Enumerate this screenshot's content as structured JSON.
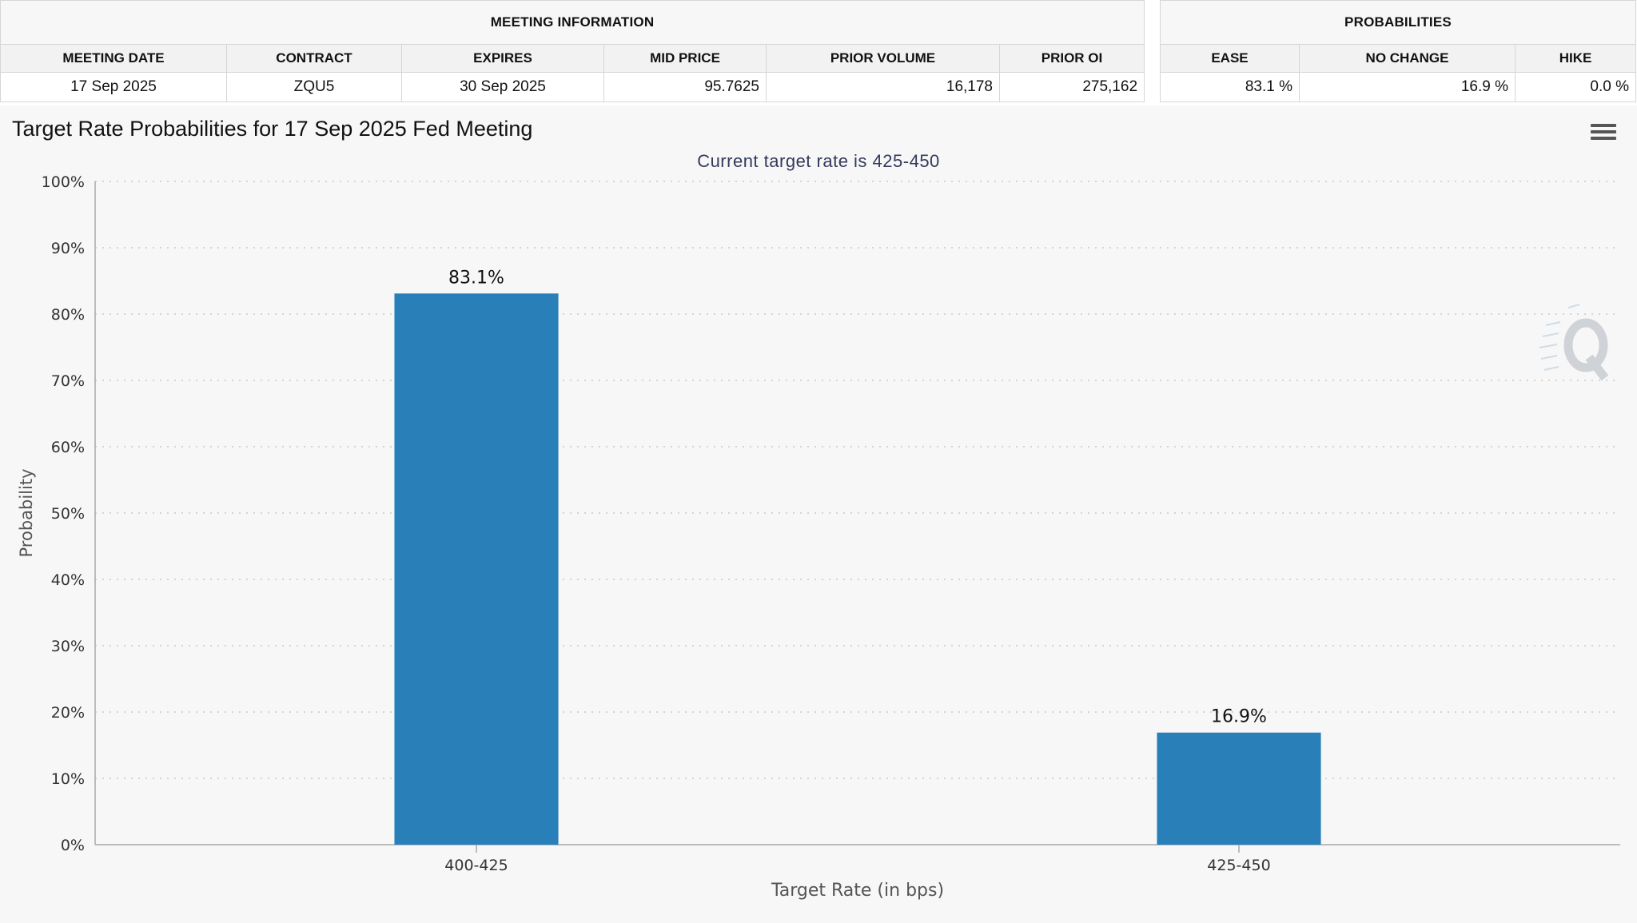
{
  "meeting_info": {
    "group_label": "MEETING INFORMATION",
    "headers": [
      "MEETING DATE",
      "CONTRACT",
      "EXPIRES",
      "MID PRICE",
      "PRIOR VOLUME",
      "PRIOR OI"
    ],
    "row": [
      "17 Sep 2025",
      "ZQU5",
      "30 Sep 2025",
      "95.7625",
      "16,178",
      "275,162"
    ]
  },
  "probabilities": {
    "group_label": "PROBABILITIES",
    "headers": [
      "EASE",
      "NO CHANGE",
      "HIKE"
    ],
    "row": [
      "83.1 %",
      "16.9 %",
      "0.0 %"
    ]
  },
  "menu_icon": "hamburger-menu-icon",
  "watermark_icon": "q-logo-icon",
  "colors": {
    "bar": "#2980b9",
    "panel_bg": "#f7f7f7",
    "subtitle": "#333a5c"
  },
  "chart_data": {
    "type": "bar",
    "title": "Target Rate Probabilities for 17 Sep 2025 Fed Meeting",
    "subtitle": "Current target rate is 425-450",
    "categories": [
      "400-425",
      "425-450"
    ],
    "values": [
      83.1,
      16.9
    ],
    "data_labels": [
      "83.1%",
      "16.9%"
    ],
    "xlabel": "Target Rate (in bps)",
    "ylabel": "Probability",
    "ylim": [
      0,
      100
    ],
    "yticks": [
      "0%",
      "10%",
      "20%",
      "30%",
      "40%",
      "50%",
      "60%",
      "70%",
      "80%",
      "90%",
      "100%"
    ],
    "grid": true,
    "legend": "none"
  }
}
